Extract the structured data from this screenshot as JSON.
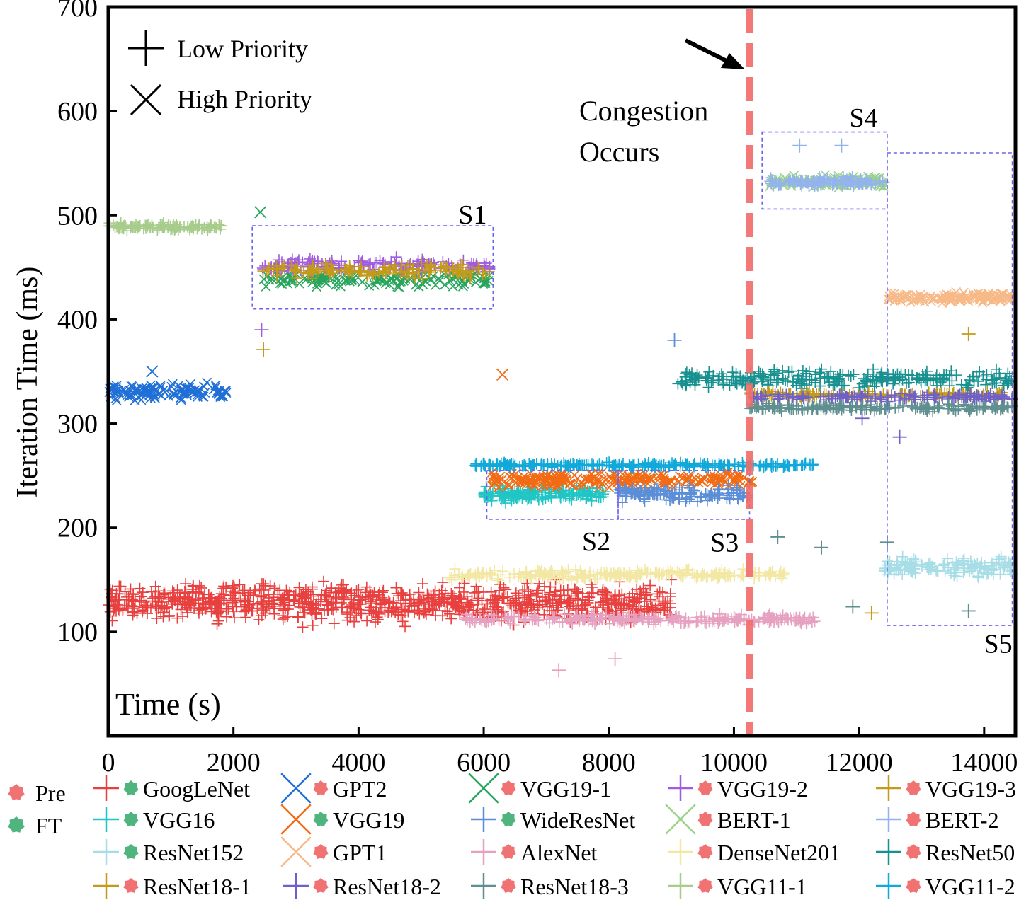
{
  "chart_data": {
    "type": "scatter",
    "xlabel": "Time (s)",
    "ylabel": "Iteration Time (ms)",
    "xlim": [
      0,
      14500
    ],
    "ylim": [
      0,
      700
    ],
    "xticks": [
      0,
      2000,
      4000,
      6000,
      8000,
      10000,
      12000,
      14000
    ],
    "yticks": [
      100,
      200,
      300,
      400,
      500,
      600,
      700
    ],
    "grid": false,
    "marker_legend": [
      {
        "label": "Low Priority",
        "marker": "plus"
      },
      {
        "label": "High Priority",
        "marker": "x"
      }
    ],
    "phase_legend": [
      {
        "label": "Pre",
        "color": "#f07272"
      },
      {
        "label": "FT",
        "color": "#4fb47e"
      }
    ],
    "congestion": {
      "x": 10250,
      "label_line1": "Congestion",
      "label_line2": "Occurs",
      "color": "#f26b6b"
    },
    "regions": [
      {
        "label": "S1",
        "x0": 2300,
        "x1": 6150,
        "y0": 410,
        "y1": 490
      },
      {
        "label": "S2",
        "x0": 6050,
        "x1": 8150,
        "y0": 208,
        "y1": 255
      },
      {
        "label": "S3",
        "x0": 8150,
        "x1": 10250,
        "y0": 208,
        "y1": 255
      },
      {
        "label": "S4",
        "x0": 10450,
        "x1": 12450,
        "y0": 506,
        "y1": 580
      },
      {
        "label": "S5",
        "x0": 12450,
        "x1": 14450,
        "y0": 106,
        "y1": 560
      }
    ],
    "series": [
      {
        "name": "GoogLeNet",
        "marker": "plus",
        "phase": "FT",
        "color": "#e8403f",
        "x_start": 0,
        "x_end": 9000,
        "mean": 128,
        "spread": 16,
        "points": 900
      },
      {
        "name": "GPT2",
        "marker": "x",
        "phase": "Pre",
        "color": "#1f6fd6",
        "x_start": 0,
        "x_end": 1900,
        "mean": 330,
        "spread": 7,
        "points": 120
      },
      {
        "name": "VGG19-1",
        "marker": "x",
        "phase": "Pre",
        "color": "#27a45d",
        "x_start": 2450,
        "x_end": 6100,
        "mean": 438,
        "spread": 6,
        "points": 140
      },
      {
        "name": "VGG19-2",
        "marker": "plus",
        "phase": "Pre",
        "color": "#a15ae0",
        "x_start": 2450,
        "x_end": 6100,
        "mean": 452,
        "spread": 6,
        "points": 140
      },
      {
        "name": "VGG19-3",
        "marker": "plus",
        "phase": "Pre",
        "color": "#c39a1a",
        "x_start": 2450,
        "x_end": 6100,
        "mean": 447,
        "spread": 6,
        "points": 140
      },
      {
        "name": "VGG16",
        "marker": "plus",
        "phase": "FT",
        "color": "#20c5c5",
        "x_start": 6000,
        "x_end": 7950,
        "mean": 232,
        "spread": 6,
        "points": 160
      },
      {
        "name": "VGG19",
        "marker": "x",
        "phase": "FT",
        "color": "#f26a12",
        "x_start": 6100,
        "x_end": 10300,
        "mean": 246,
        "spread": 6,
        "points": 240
      },
      {
        "name": "WideResNet",
        "marker": "plus",
        "phase": "FT",
        "color": "#5b8ed6",
        "x_start": 8150,
        "x_end": 10250,
        "mean": 232,
        "spread": 6,
        "points": 120
      },
      {
        "name": "BERT-1",
        "marker": "x",
        "phase": "Pre",
        "color": "#9bd38a",
        "x_start": 10550,
        "x_end": 12400,
        "mean": 532,
        "spread": 5,
        "points": 110
      },
      {
        "name": "BERT-2",
        "marker": "plus",
        "phase": "Pre",
        "color": "#93b3ee",
        "x_start": 10550,
        "x_end": 12400,
        "mean": 532,
        "spread": 4,
        "points": 110
      },
      {
        "name": "ResNet152",
        "marker": "plus",
        "phase": "FT",
        "color": "#a6dde6",
        "x_start": 12400,
        "x_end": 14450,
        "mean": 162,
        "spread": 8,
        "points": 140
      },
      {
        "name": "GPT1",
        "marker": "x",
        "phase": "Pre",
        "color": "#f7b987",
        "x_start": 12450,
        "x_end": 14450,
        "mean": 421,
        "spread": 4,
        "points": 140
      },
      {
        "name": "AlexNet",
        "marker": "plus",
        "phase": "Pre",
        "color": "#e6a1c0",
        "x_start": 5700,
        "x_end": 11300,
        "mean": 112,
        "spread": 4,
        "points": 260
      },
      {
        "name": "DenseNet201",
        "marker": "plus",
        "phase": "Pre",
        "color": "#f3e7a4",
        "x_start": 5400,
        "x_end": 10800,
        "mean": 155,
        "spread": 4,
        "points": 240
      },
      {
        "name": "ResNet50",
        "marker": "plus",
        "phase": "Pre",
        "color": "#169190",
        "x_start": 9100,
        "x_end": 14450,
        "mean": 343,
        "spread": 7,
        "points": 260
      },
      {
        "name": "ResNet18-1",
        "marker": "plus",
        "phase": "Pre",
        "color": "#c39a1a",
        "x_start": 10250,
        "x_end": 14450,
        "mean": 328,
        "spread": 3,
        "points": 120
      },
      {
        "name": "ResNet18-2",
        "marker": "plus",
        "phase": "Pre",
        "color": "#7060c4",
        "x_start": 10250,
        "x_end": 14450,
        "mean": 325,
        "spread": 3,
        "points": 140
      },
      {
        "name": "ResNet18-3",
        "marker": "plus",
        "phase": "Pre",
        "color": "#5f8f8f",
        "x_start": 10250,
        "x_end": 14450,
        "mean": 315,
        "spread": 3,
        "points": 180
      },
      {
        "name": "VGG11-1",
        "marker": "plus",
        "phase": "Pre",
        "color": "#a7cc8b",
        "x_start": 0,
        "x_end": 1850,
        "mean": 489,
        "spread": 3,
        "points": 110
      },
      {
        "name": "VGG11-2",
        "marker": "plus",
        "phase": "Pre",
        "color": "#10a9d9",
        "x_start": 5850,
        "x_end": 11300,
        "mean": 260,
        "spread": 2,
        "points": 260
      }
    ],
    "outliers": [
      {
        "series": "VGG19-1",
        "x": 2430,
        "y": 503
      },
      {
        "series": "VGG19-2",
        "x": 2450,
        "y": 390
      },
      {
        "series": "VGG19-3",
        "x": 2480,
        "y": 371
      },
      {
        "series": "VGG19",
        "x": 6300,
        "y": 347
      },
      {
        "series": "WideResNet",
        "x": 9050,
        "y": 380
      },
      {
        "series": "GPT2",
        "x": 700,
        "y": 350
      },
      {
        "series": "BERT-2",
        "x": 11050,
        "y": 567
      },
      {
        "series": "BERT-2",
        "x": 11720,
        "y": 567
      },
      {
        "series": "AlexNet",
        "x": 7200,
        "y": 63
      },
      {
        "series": "AlexNet",
        "x": 8100,
        "y": 74
      },
      {
        "series": "ResNet18-3",
        "x": 10700,
        "y": 191
      },
      {
        "series": "ResNet18-3",
        "x": 11400,
        "y": 181
      },
      {
        "series": "ResNet18-3",
        "x": 12450,
        "y": 186
      },
      {
        "series": "ResNet18-3",
        "x": 11900,
        "y": 124
      },
      {
        "series": "ResNet18-3",
        "x": 13750,
        "y": 120
      },
      {
        "series": "ResNet18-1",
        "x": 12200,
        "y": 118
      },
      {
        "series": "ResNet18-1",
        "x": 13750,
        "y": 386
      },
      {
        "series": "ResNet18-2",
        "x": 12650,
        "y": 287
      },
      {
        "series": "ResNet18-2",
        "x": 12050,
        "y": 305
      }
    ]
  }
}
